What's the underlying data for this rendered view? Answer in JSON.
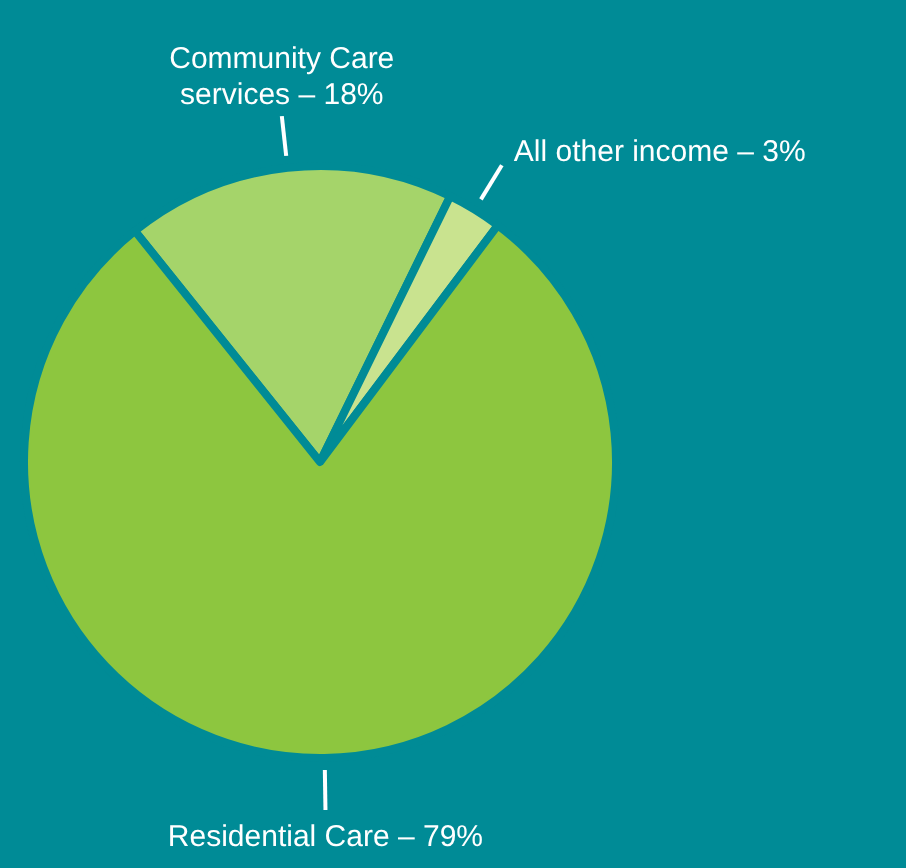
{
  "chart_data": {
    "type": "pie",
    "categories": [
      "Community Care services – 18%",
      "All other income – 3%",
      "Residential Care – 79%"
    ],
    "values": [
      18,
      3,
      79
    ],
    "colors": [
      "#a5d46a",
      "#c9e38f",
      "#8dc63f"
    ]
  }
}
